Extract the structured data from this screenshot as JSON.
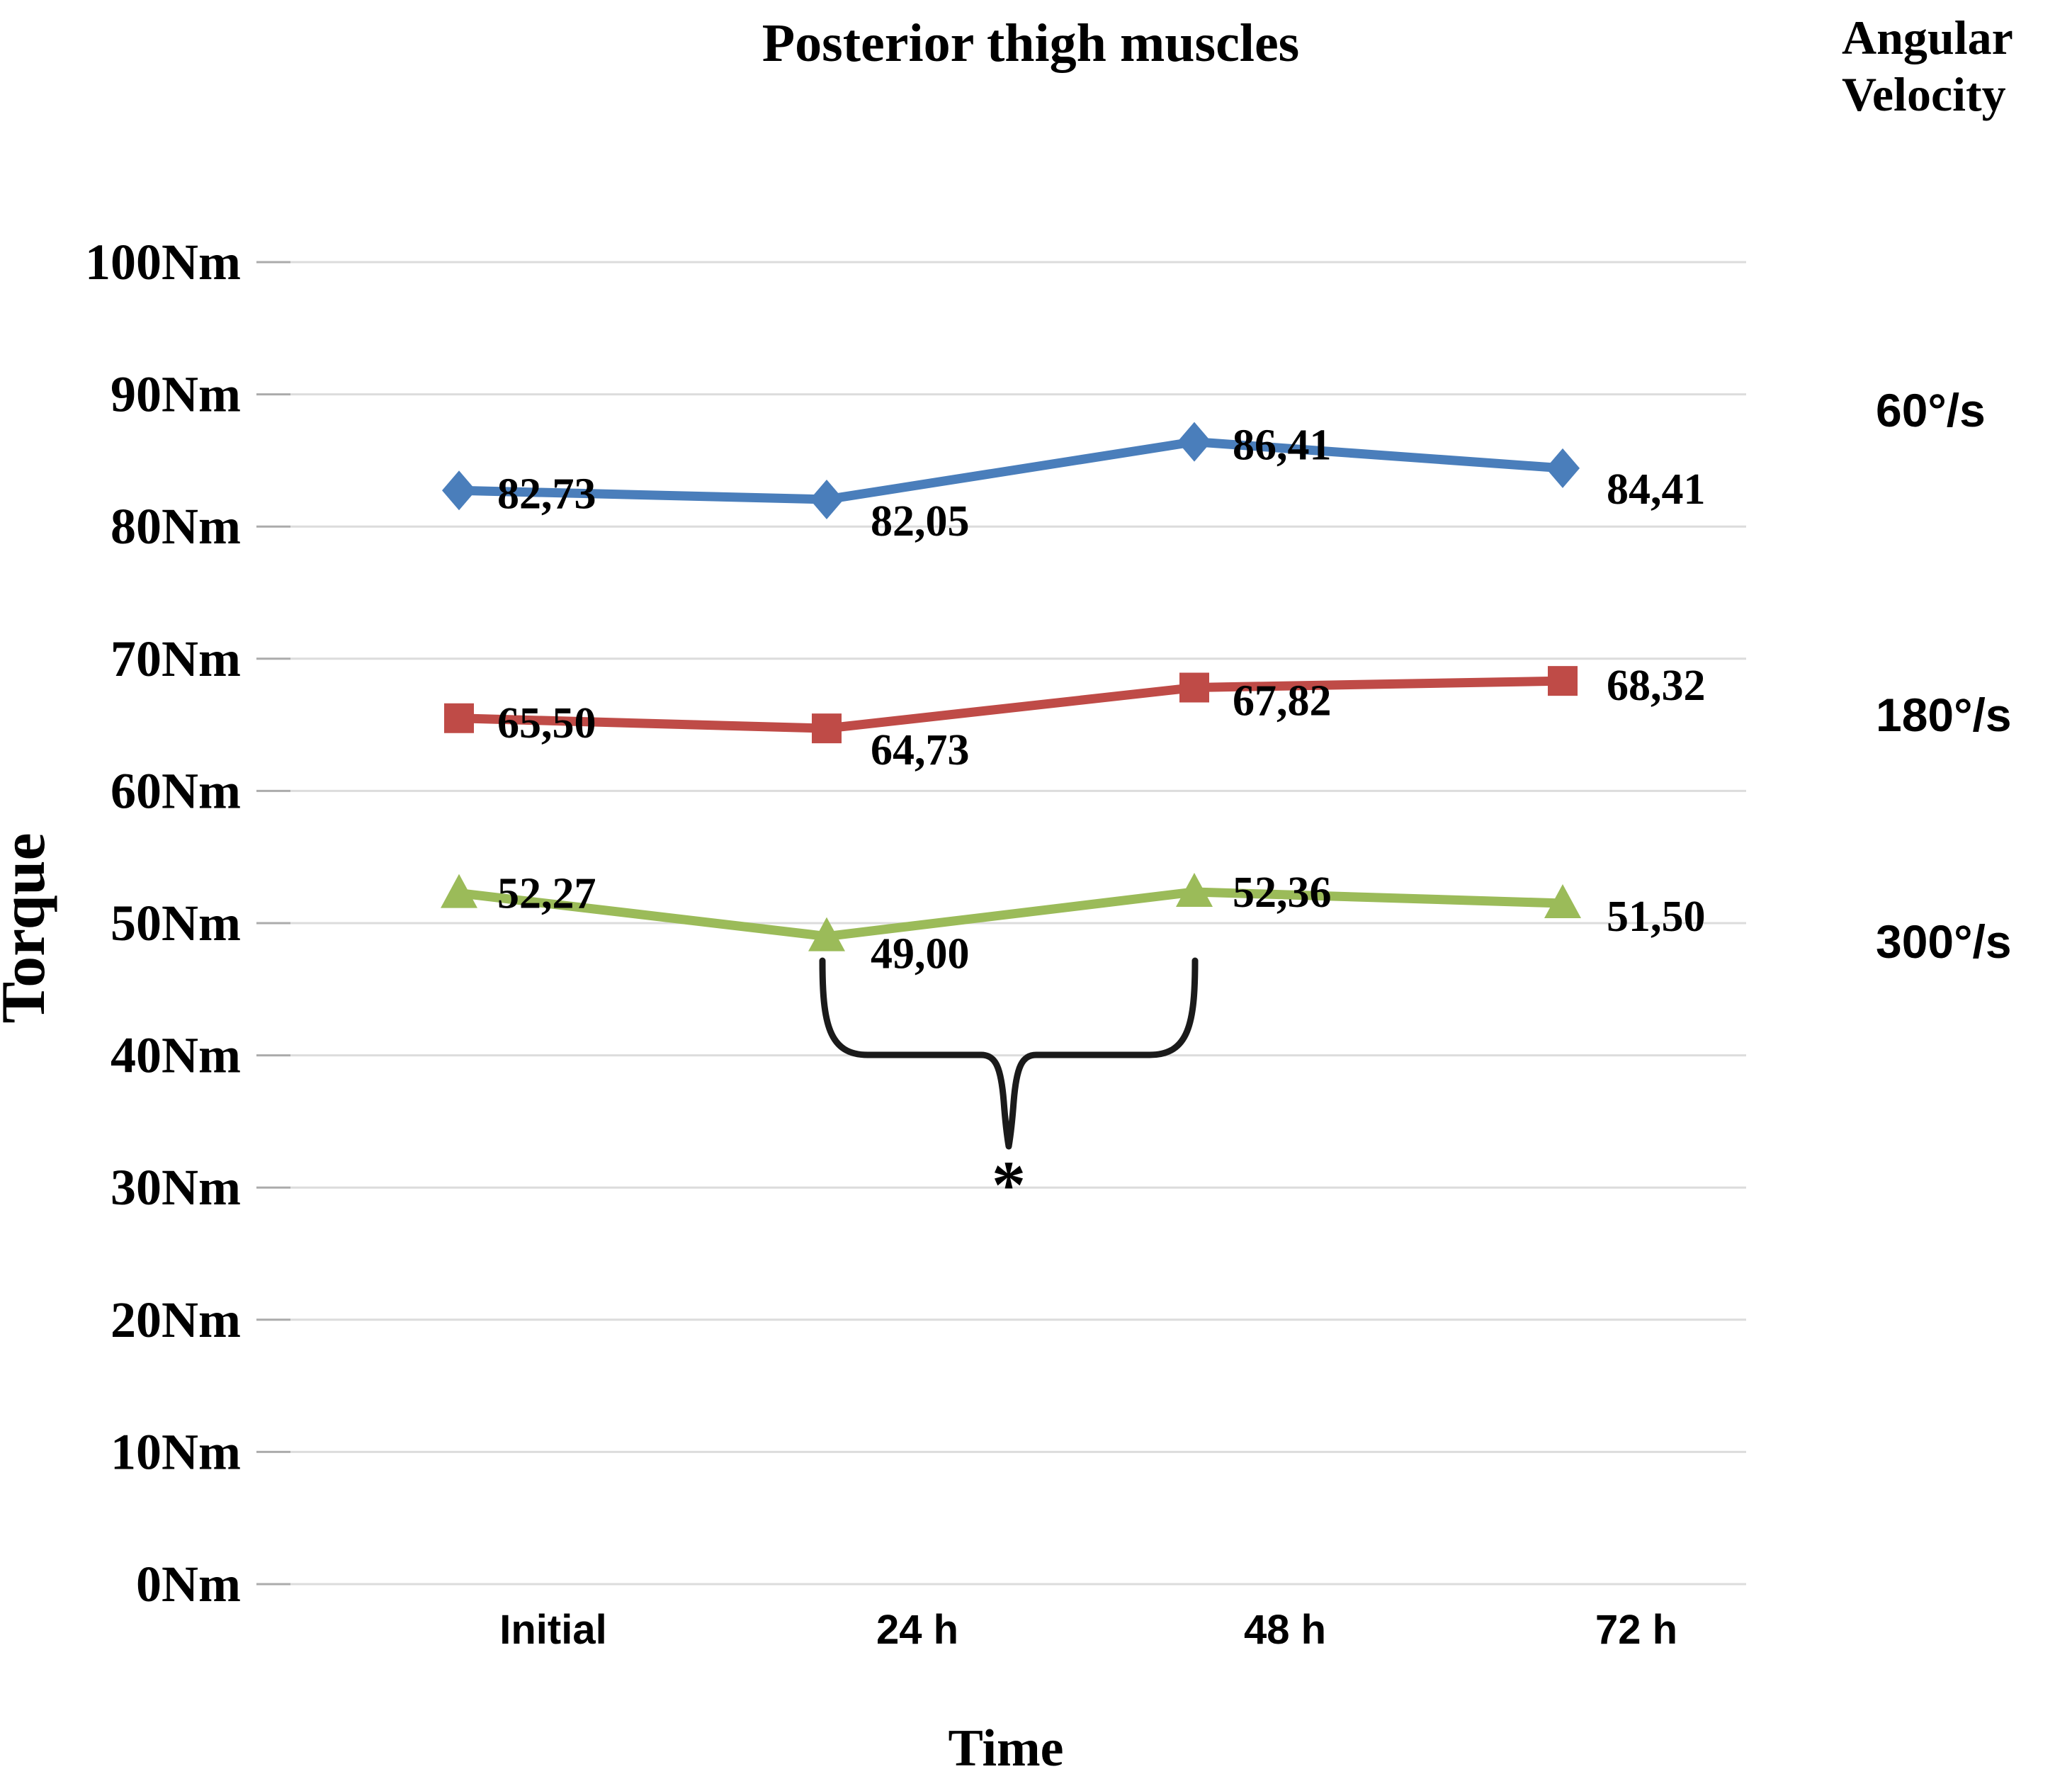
{
  "figure": {
    "title": "Posterior thigh muscles",
    "legend_header": {
      "line1": "Angular",
      "line2": "Velocity"
    },
    "x_axis_title": "Time",
    "y_axis_title": "Torque",
    "significance_label": "*"
  },
  "chart_data": {
    "type": "line",
    "title": "Posterior thigh muscles",
    "xlabel": "Time",
    "ylabel": "Torque",
    "categories": [
      "Initial",
      "24 h",
      "48 h",
      "72 h"
    ],
    "ylim": [
      0,
      100
    ],
    "y_tick_step": 10,
    "y_unit": "Nm",
    "y_tick_labels": [
      "100Nm",
      "90Nm",
      "80Nm",
      "70Nm",
      "60Nm",
      "50Nm",
      "40Nm",
      "30Nm",
      "20Nm",
      "10Nm",
      "0Nm"
    ],
    "grid": true,
    "legend_position": "right",
    "legend_title": "Angular Velocity",
    "series": [
      {
        "name": "60°/s",
        "marker": "diamond",
        "color": "#4a7ebb",
        "values": [
          82.73,
          82.05,
          86.41,
          84.41
        ],
        "point_labels": [
          "82,73",
          "82,05",
          "86,41",
          "84,41"
        ]
      },
      {
        "name": "180°/s",
        "marker": "square",
        "color": "#bf4b47",
        "values": [
          65.5,
          64.73,
          67.82,
          68.32
        ],
        "point_labels": [
          "65,50",
          "64,73",
          "67,82",
          "68,32"
        ]
      },
      {
        "name": "300°/s",
        "marker": "triangle",
        "color": "#9bbb59",
        "values": [
          52.27,
          49.0,
          52.36,
          51.5
        ],
        "point_labels": [
          "52,27",
          "49,00",
          "52,36",
          "51,50"
        ]
      }
    ],
    "annotation": {
      "type": "significance-bracket",
      "series": "300°/s",
      "between_categories": [
        "24 h",
        "48 h"
      ],
      "label": "*"
    }
  }
}
